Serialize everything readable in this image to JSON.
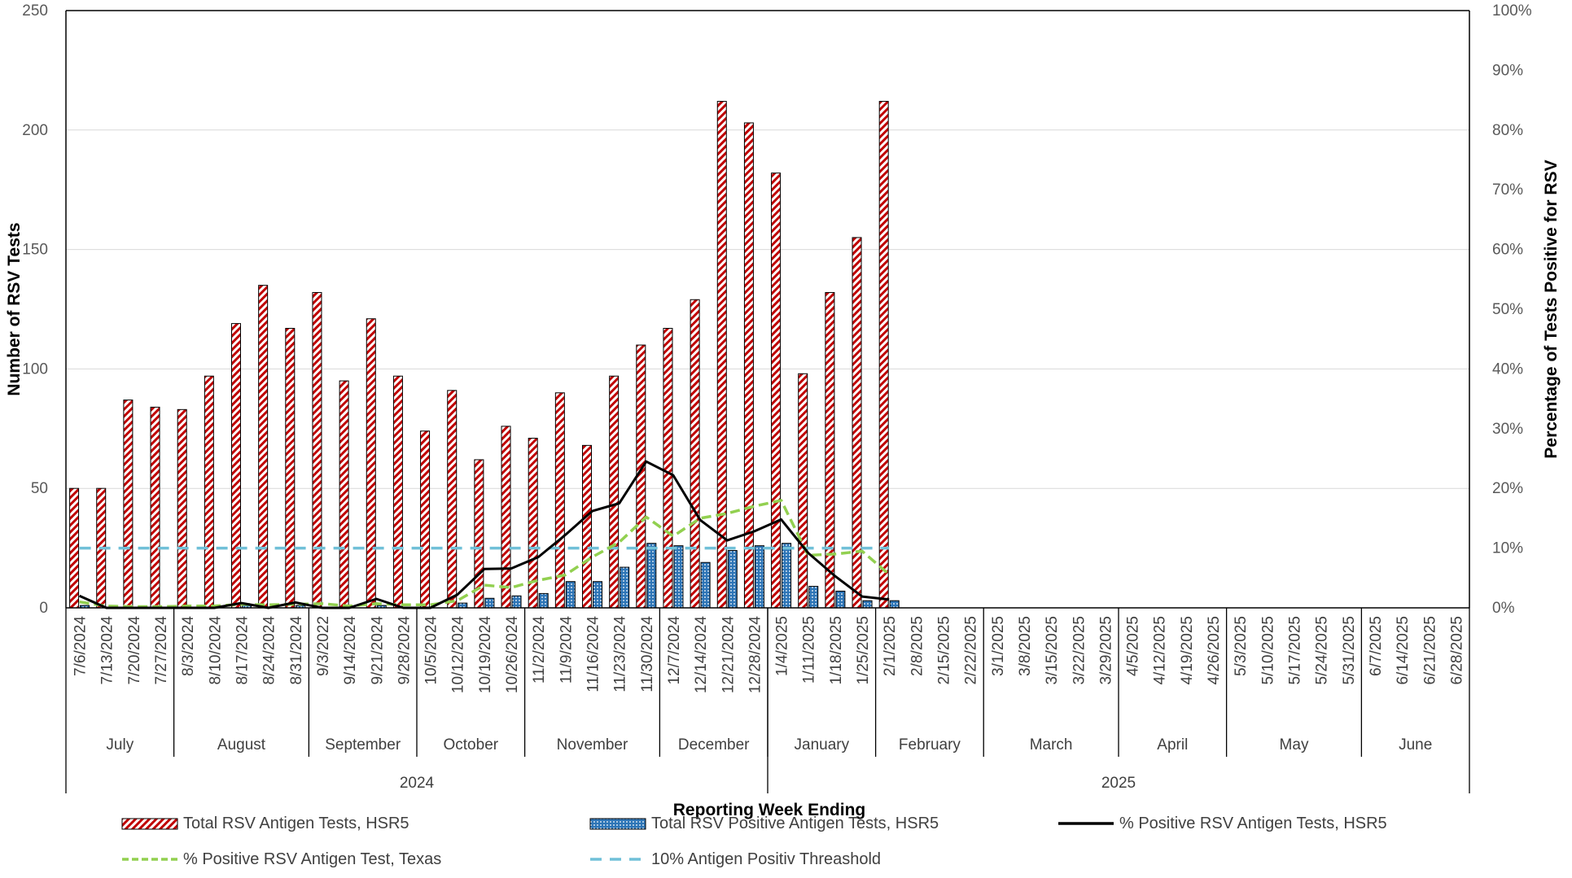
{
  "chart_data": {
    "type": "bar",
    "xlabel": "Reporting Week Ending",
    "ylabel": "Number of RSV Tests",
    "y2label": "Percentage of Tests Positive for RSV",
    "ylim": [
      0,
      250
    ],
    "y2lim": [
      0,
      100
    ],
    "yticks": [
      0,
      50,
      100,
      150,
      200,
      250
    ],
    "y2ticks": [
      "0%",
      "10%",
      "20%",
      "30%",
      "40%",
      "50%",
      "60%",
      "70%",
      "80%",
      "90%",
      "100%"
    ],
    "grid": "horizontal",
    "legend_position": "bottom",
    "categories": [
      "7/6/2024",
      "7/13/2024",
      "7/20/2024",
      "7/27/2024",
      "8/3/2024",
      "8/10/2024",
      "8/17/2024",
      "8/24/2024",
      "8/31/2024",
      "9/3/2022",
      "9/14/2024",
      "9/21/2024",
      "9/28/2024",
      "10/5/2024",
      "10/12/2024",
      "10/19/2024",
      "10/26/2024",
      "11/2/2024",
      "11/9/2024",
      "11/16/2024",
      "11/23/2024",
      "11/30/2024",
      "12/7/2024",
      "12/14/2024",
      "12/21/2024",
      "12/28/2024",
      "1/4/2025",
      "1/11/2025",
      "1/18/2025",
      "1/25/2025",
      "2/1/2025",
      "2/8/2025",
      "2/15/2025",
      "2/22/2025",
      "3/1/2025",
      "3/8/2025",
      "3/15/2025",
      "3/22/2025",
      "3/29/2025",
      "4/5/2025",
      "4/12/2025",
      "4/19/2025",
      "4/26/2025",
      "5/3/2025",
      "5/10/2025",
      "5/17/2025",
      "5/24/2025",
      "5/31/2025",
      "6/7/2025",
      "6/14/2025",
      "6/21/2025",
      "6/28/2025"
    ],
    "months": [
      {
        "label": "July",
        "start": 0,
        "count": 4
      },
      {
        "label": "August",
        "start": 4,
        "count": 5
      },
      {
        "label": "September",
        "start": 9,
        "count": 4
      },
      {
        "label": "October",
        "start": 13,
        "count": 4
      },
      {
        "label": "November",
        "start": 17,
        "count": 5
      },
      {
        "label": "December",
        "start": 22,
        "count": 4
      },
      {
        "label": "January",
        "start": 26,
        "count": 4
      },
      {
        "label": "February",
        "start": 30,
        "count": 4
      },
      {
        "label": "March",
        "start": 34,
        "count": 5
      },
      {
        "label": "April",
        "start": 39,
        "count": 4
      },
      {
        "label": "May",
        "start": 43,
        "count": 5
      },
      {
        "label": "June",
        "start": 48,
        "count": 4
      }
    ],
    "years": [
      {
        "label": "2024",
        "start": 0,
        "count": 26
      },
      {
        "label": "2025",
        "start": 26,
        "count": 26
      }
    ],
    "series": [
      {
        "name": "Total RSV Antigen Tests, HSR5",
        "kind": "bar",
        "axis": "left",
        "color": "#c00000",
        "values": [
          50,
          50,
          87,
          84,
          83,
          97,
          119,
          135,
          117,
          132,
          95,
          121,
          97,
          74,
          91,
          62,
          76,
          71,
          90,
          68,
          97,
          110,
          117,
          129,
          212,
          203,
          182,
          98,
          132,
          155,
          212,
          null,
          null,
          null,
          null,
          null,
          null,
          null,
          null,
          null,
          null,
          null,
          null,
          null,
          null,
          null,
          null,
          null,
          null,
          null,
          null,
          null
        ]
      },
      {
        "name": "Total RSV Positive Antigen Tests, HSR5",
        "kind": "bar",
        "axis": "left",
        "color": "#2e75b6",
        "values": [
          1,
          0,
          0,
          0,
          0,
          0,
          1,
          0,
          1,
          0,
          0,
          1,
          0,
          0,
          2,
          4,
          5,
          6,
          11,
          11,
          17,
          27,
          26,
          19,
          24,
          26,
          27,
          9,
          7,
          3,
          3,
          null,
          null,
          null,
          null,
          null,
          null,
          null,
          null,
          null,
          null,
          null,
          null,
          null,
          null,
          null,
          null,
          null,
          null,
          null,
          null,
          null
        ]
      },
      {
        "name": "% Positive RSV Antigen Tests, HSR5",
        "kind": "line",
        "axis": "right",
        "color": "#000000",
        "dash": "solid",
        "values": [
          2,
          0,
          0,
          0,
          0,
          0,
          0.8,
          0,
          0.9,
          0,
          0,
          1.5,
          0,
          0,
          2.2,
          6.5,
          6.6,
          8.5,
          12.2,
          16.2,
          17.5,
          24.5,
          22.2,
          14.7,
          11.3,
          12.8,
          14.8,
          9.2,
          5.3,
          1.9,
          1.4,
          null,
          null,
          null,
          null,
          null,
          null,
          null,
          null,
          null,
          null,
          null,
          null,
          null,
          null,
          null,
          null,
          null,
          null,
          null,
          null,
          null
        ]
      },
      {
        "name": "% Positive RSV Antigen Test, Texas",
        "kind": "line",
        "axis": "right",
        "color": "#92d050",
        "dash": "long-dash",
        "values": [
          1,
          0.3,
          0.2,
          0.2,
          0.3,
          0.3,
          0.6,
          0.5,
          0.6,
          0.7,
          0.3,
          0.7,
          0.5,
          0.5,
          1.2,
          3.8,
          3.4,
          4.6,
          5.5,
          8.5,
          11,
          15.2,
          12,
          15,
          15.8,
          17,
          18,
          8.8,
          9,
          9.5,
          5.6,
          null,
          null,
          null,
          null,
          null,
          null,
          null,
          null,
          null,
          null,
          null,
          null,
          null,
          null,
          null,
          null,
          null,
          null,
          null,
          null,
          null
        ]
      },
      {
        "name": "10% Antigen Positiv Threashold",
        "kind": "line",
        "axis": "right",
        "color": "#70c0d8",
        "dash": "dash",
        "values": [
          10,
          10,
          10,
          10,
          10,
          10,
          10,
          10,
          10,
          10,
          10,
          10,
          10,
          10,
          10,
          10,
          10,
          10,
          10,
          10,
          10,
          10,
          10,
          10,
          10,
          10,
          10,
          10,
          10,
          10,
          10,
          null,
          null,
          null,
          null,
          null,
          null,
          null,
          null,
          null,
          null,
          null,
          null,
          null,
          null,
          null,
          null,
          null,
          null,
          null,
          null,
          null
        ]
      }
    ]
  }
}
